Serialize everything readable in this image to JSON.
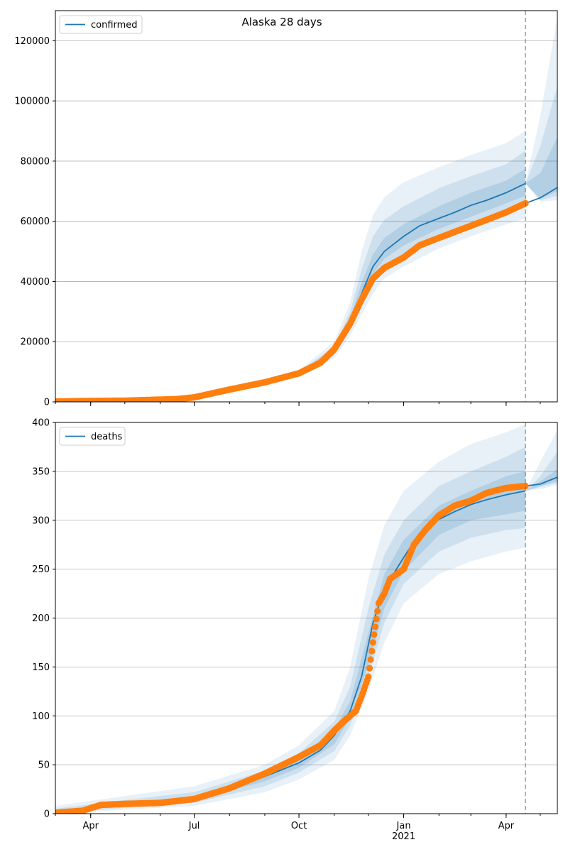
{
  "figure": {
    "title": "Alaska 28 days"
  },
  "chart_data": [
    {
      "type": "line",
      "panel": "confirmed",
      "legend": "confirmed",
      "legend_placement": "top-left",
      "grid": "horizontal",
      "x_range": [
        "2020-03-01",
        "2021-05-16"
      ],
      "ylim": [
        0,
        130000
      ],
      "y_ticks": [
        0,
        20000,
        40000,
        60000,
        80000,
        100000,
        120000
      ],
      "x_tick_labels": [
        {
          "date": "2020-04-01",
          "label": "Apr",
          "sub": ""
        },
        {
          "date": "2020-07-01",
          "label": "Jul",
          "sub": ""
        },
        {
          "date": "2020-10-01",
          "label": "Oct",
          "sub": ""
        },
        {
          "date": "2021-01-01",
          "label": "Jan",
          "sub": "2021"
        },
        {
          "date": "2021-04-01",
          "label": "Apr",
          "sub": ""
        }
      ],
      "forecast_start": "2021-04-18",
      "colors": {
        "model": "#1f77b4",
        "observed": "#ff7f0e",
        "band": "#1f77b4"
      },
      "model": {
        "x": [
          "2020-03-01",
          "2020-05-01",
          "2020-06-15",
          "2020-07-01",
          "2020-08-01",
          "2020-09-01",
          "2020-10-01",
          "2020-10-20",
          "2020-11-01",
          "2020-11-15",
          "2020-11-25",
          "2020-12-05",
          "2020-12-15",
          "2021-01-01",
          "2021-01-15",
          "2021-02-01",
          "2021-02-15",
          "2021-03-01",
          "2021-03-15",
          "2021-04-01",
          "2021-04-18",
          "2021-05-01",
          "2021-05-16"
        ],
        "y": [
          0,
          300,
          900,
          1500,
          4000,
          6500,
          9500,
          13000,
          17000,
          26000,
          36000,
          45000,
          50000,
          55000,
          58500,
          61000,
          63000,
          65300,
          67000,
          69500,
          72600,
          67800,
          71200
        ]
      },
      "observed": {
        "x": [
          "2020-03-01",
          "2020-04-01",
          "2020-05-01",
          "2020-06-15",
          "2020-07-01",
          "2020-08-01",
          "2020-09-01",
          "2020-10-01",
          "2020-10-20",
          "2020-11-01",
          "2020-11-15",
          "2020-11-25",
          "2020-12-05",
          "2020-12-15",
          "2021-01-01",
          "2021-01-15",
          "2021-02-01",
          "2021-02-15",
          "2021-03-01",
          "2021-03-15",
          "2021-04-01",
          "2021-04-18"
        ],
        "y": [
          100,
          300,
          400,
          900,
          1500,
          4100,
          6500,
          9500,
          13000,
          17500,
          26000,
          34000,
          41000,
          44500,
          48000,
          52000,
          54500,
          56500,
          58500,
          60500,
          63000,
          66000
        ]
      },
      "bands": [
        {
          "level": "outer",
          "x": [
            "2020-03-01",
            "2020-07-01",
            "2020-09-01",
            "2020-10-01",
            "2020-11-01",
            "2020-11-15",
            "2020-11-25",
            "2020-12-05",
            "2020-12-15",
            "2021-01-01",
            "2021-02-01",
            "2021-03-01",
            "2021-04-01",
            "2021-04-18",
            "2021-05-01",
            "2021-05-16"
          ],
          "lower": [
            0,
            1200,
            6000,
            8500,
            14500,
            22000,
            29000,
            36000,
            41000,
            45000,
            51000,
            55000,
            59000,
            61000,
            66500,
            67000
          ],
          "upper": [
            200,
            1800,
            7500,
            10500,
            20000,
            33000,
            50000,
            62000,
            68000,
            73000,
            78000,
            82000,
            86000,
            90000,
            95000,
            128000
          ]
        },
        {
          "level": "middle",
          "x": [
            "2020-03-01",
            "2020-07-01",
            "2020-09-01",
            "2020-10-01",
            "2020-11-01",
            "2020-11-15",
            "2020-11-25",
            "2020-12-05",
            "2020-12-15",
            "2021-01-01",
            "2021-02-01",
            "2021-03-01",
            "2021-04-01",
            "2021-04-18",
            "2021-05-01",
            "2021-05-16"
          ],
          "lower": [
            0,
            1300,
            6200,
            9000,
            15500,
            24000,
            32000,
            40000,
            44500,
            48500,
            54500,
            58500,
            62500,
            64500,
            67000,
            68500
          ],
          "upper": [
            150,
            1700,
            7200,
            10000,
            18500,
            30000,
            44000,
            55000,
            60500,
            65000,
            71000,
            75000,
            79000,
            83500,
            85000,
            105000
          ]
        },
        {
          "level": "inner",
          "x": [
            "2020-03-01",
            "2020-07-01",
            "2020-09-01",
            "2020-10-01",
            "2020-11-01",
            "2020-11-15",
            "2020-11-25",
            "2020-12-05",
            "2020-12-15",
            "2021-01-01",
            "2021-02-01",
            "2021-03-01",
            "2021-04-01",
            "2021-04-18",
            "2021-05-01",
            "2021-05-16"
          ],
          "lower": [
            0,
            1400,
            6400,
            9300,
            16300,
            25000,
            34000,
            42500,
            47500,
            52000,
            57500,
            61500,
            66000,
            68500,
            67500,
            70000
          ],
          "upper": [
            100,
            1600,
            6900,
            9800,
            17800,
            28000,
            39500,
            49000,
            54500,
            59000,
            65000,
            69500,
            73500,
            77500,
            76000,
            88000
          ]
        }
      ]
    },
    {
      "type": "line",
      "panel": "deaths",
      "legend": "deaths",
      "legend_placement": "top-left",
      "grid": "horizontal",
      "x_range": [
        "2020-03-01",
        "2021-05-16"
      ],
      "ylim": [
        0,
        400
      ],
      "y_ticks": [
        0,
        50,
        100,
        150,
        200,
        250,
        300,
        350,
        400
      ],
      "x_tick_labels": [
        {
          "date": "2020-04-01",
          "label": "Apr",
          "sub": ""
        },
        {
          "date": "2020-07-01",
          "label": "Jul",
          "sub": ""
        },
        {
          "date": "2020-10-01",
          "label": "Oct",
          "sub": ""
        },
        {
          "date": "2021-01-01",
          "label": "Jan",
          "sub": "2021"
        },
        {
          "date": "2021-04-01",
          "label": "Apr",
          "sub": ""
        }
      ],
      "forecast_start": "2021-04-18",
      "colors": {
        "model": "#1f77b4",
        "observed": "#ff7f0e",
        "band": "#1f77b4"
      },
      "model": {
        "x": [
          "2020-03-01",
          "2020-04-01",
          "2020-05-01",
          "2020-06-01",
          "2020-07-01",
          "2020-08-01",
          "2020-09-01",
          "2020-10-01",
          "2020-10-20",
          "2020-11-01",
          "2020-11-15",
          "2020-11-25",
          "2020-12-05",
          "2020-12-15",
          "2021-01-01",
          "2021-01-15",
          "2021-02-01",
          "2021-02-15",
          "2021-03-01",
          "2021-03-15",
          "2021-04-01",
          "2021-04-18",
          "2021-05-01",
          "2021-05-16"
        ],
        "y": [
          2,
          5,
          10,
          12,
          16,
          25,
          38,
          52,
          65,
          80,
          105,
          140,
          195,
          230,
          262,
          287,
          301,
          309,
          316,
          321,
          326,
          330,
          337,
          344
        ]
      },
      "observed": {
        "x": [
          "2020-03-01",
          "2020-03-25",
          "2020-04-10",
          "2020-05-01",
          "2020-06-01",
          "2020-07-01",
          "2020-08-01",
          "2020-09-01",
          "2020-10-01",
          "2020-10-20",
          "2020-11-01",
          "2020-11-10",
          "2020-11-20",
          "2020-11-25",
          "2020-12-01",
          "2020-12-05",
          "2020-12-10",
          "2020-12-15",
          "2020-12-20",
          "2021-01-01",
          "2021-01-10",
          "2021-01-20",
          "2021-02-01",
          "2021-02-15",
          "2021-03-01",
          "2021-03-15",
          "2021-04-01",
          "2021-04-18"
        ],
        "y": [
          1,
          3,
          9,
          10,
          11,
          15,
          26,
          41,
          58,
          70,
          85,
          95,
          105,
          120,
          140,
          175,
          215,
          225,
          240,
          250,
          275,
          290,
          305,
          315,
          320,
          328,
          333,
          335
        ]
      },
      "bands": [
        {
          "level": "outer",
          "x": [
            "2020-03-01",
            "2020-05-01",
            "2020-07-01",
            "2020-09-01",
            "2020-10-01",
            "2020-11-01",
            "2020-11-15",
            "2020-12-01",
            "2020-12-15",
            "2021-01-01",
            "2021-02-01",
            "2021-03-01",
            "2021-04-01",
            "2021-04-18",
            "2021-05-01",
            "2021-05-16"
          ],
          "lower": [
            0,
            4,
            8,
            22,
            35,
            55,
            80,
            125,
            175,
            215,
            245,
            258,
            268,
            272,
            332,
            336
          ],
          "upper": [
            8,
            18,
            28,
            50,
            70,
            105,
            150,
            240,
            295,
            330,
            360,
            378,
            390,
            398,
            360,
            392
          ]
        },
        {
          "level": "middle",
          "x": [
            "2020-03-01",
            "2020-05-01",
            "2020-07-01",
            "2020-09-01",
            "2020-10-01",
            "2020-11-01",
            "2020-11-15",
            "2020-12-01",
            "2020-12-15",
            "2021-01-01",
            "2021-02-01",
            "2021-03-01",
            "2021-04-01",
            "2021-04-18",
            "2021-05-01",
            "2021-05-16"
          ],
          "lower": [
            0,
            6,
            11,
            28,
            42,
            64,
            90,
            140,
            195,
            235,
            268,
            282,
            290,
            292,
            334,
            338
          ],
          "upper": [
            5,
            14,
            22,
            44,
            62,
            94,
            130,
            210,
            265,
            300,
            335,
            350,
            365,
            375,
            345,
            370
          ]
        },
        {
          "level": "inner",
          "x": [
            "2020-03-01",
            "2020-05-01",
            "2020-07-01",
            "2020-09-01",
            "2020-10-01",
            "2020-11-01",
            "2020-11-15",
            "2020-12-01",
            "2020-12-15",
            "2021-01-01",
            "2021-02-01",
            "2021-03-01",
            "2021-04-01",
            "2021-04-18",
            "2021-05-01",
            "2021-05-16"
          ],
          "lower": [
            1,
            8,
            14,
            33,
            47,
            71,
            98,
            152,
            210,
            248,
            285,
            300,
            306,
            310,
            335,
            340
          ],
          "upper": [
            3,
            11,
            18,
            40,
            56,
            86,
            115,
            185,
            245,
            280,
            315,
            330,
            345,
            350,
            340,
            352
          ]
        }
      ]
    }
  ]
}
